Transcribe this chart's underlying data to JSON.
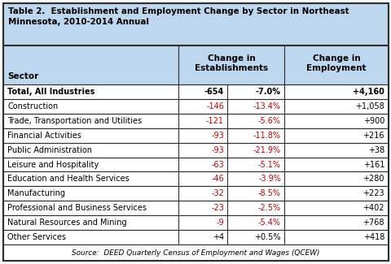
{
  "title": "Table 2.  Establishment and Employment Change by Sector in Northeast\nMinnesota, 2010-2014 Annual",
  "rows": [
    [
      "Total, All Industries",
      "-654",
      "-7.0%",
      "+4,160"
    ],
    [
      "Construction",
      "-146",
      "-13.4%",
      "+1,058"
    ],
    [
      "Trade, Transportation and Utilities",
      "-121",
      "-5.6%",
      "+900"
    ],
    [
      "Financial Activities",
      "-93",
      "-11.8%",
      "+216"
    ],
    [
      "Public Administration",
      "-93",
      "-21.9%",
      "+38"
    ],
    [
      "Leisure and Hospitality",
      "-63",
      "-5.1%",
      "+161"
    ],
    [
      "Education and Health Services",
      "-46",
      "-3.9%",
      "+280"
    ],
    [
      "Manufacturing",
      "-32",
      "-8.5%",
      "+223"
    ],
    [
      "Professional and Business Services",
      "-23",
      "-2.5%",
      "+402"
    ],
    [
      "Natural Resources and Mining",
      "-9",
      "-5.4%",
      "+768"
    ],
    [
      "Other Services",
      "+4",
      "+0.5%",
      "+418"
    ]
  ],
  "footer": "Source:  DEED Quarterly Census of Employment and Wages (QCEW)",
  "header_bg": "#BDD7EE",
  "title_bg": "#BDD7EE",
  "row_bg_white": "#FFFFFF",
  "footer_bg": "#FFFFFF",
  "border_color": "#2E2E2E",
  "red_color": "#CC0000",
  "black_color": "#000000",
  "figsize": [
    4.81,
    3.25
  ],
  "dpi": 100
}
